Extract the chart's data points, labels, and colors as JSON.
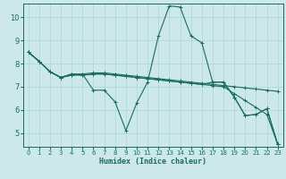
{
  "xlabel": "Humidex (Indice chaleur)",
  "bg_color": "#cce8e8",
  "line_color": "#1a6b60",
  "grid_color": "#aad4d4",
  "xlim": [
    -0.5,
    23.5
  ],
  "ylim": [
    4.4,
    10.6
  ],
  "xticks": [
    0,
    1,
    2,
    3,
    4,
    5,
    6,
    7,
    8,
    9,
    10,
    11,
    12,
    13,
    14,
    15,
    16,
    17,
    18,
    19,
    20,
    21,
    22,
    23
  ],
  "yticks": [
    5,
    6,
    7,
    8,
    9,
    10
  ],
  "series": [
    {
      "x": [
        0,
        1,
        2,
        3,
        4,
        5,
        6,
        7,
        8,
        9,
        10,
        11,
        12,
        13,
        14,
        15,
        16,
        17,
        18,
        19,
        20,
        21,
        22,
        23
      ],
      "y": [
        8.5,
        8.1,
        7.65,
        7.4,
        7.55,
        7.55,
        6.85,
        6.85,
        6.35,
        5.1,
        6.3,
        7.2,
        9.2,
        10.5,
        10.45,
        9.2,
        8.9,
        7.2,
        7.2,
        6.55,
        5.75,
        5.8,
        6.05,
        4.5
      ]
    },
    {
      "x": [
        0,
        1,
        2,
        3,
        4,
        5,
        6,
        7,
        8,
        9,
        10,
        11,
        12,
        13,
        14,
        15,
        16,
        17,
        18,
        19,
        20,
        21,
        22,
        23
      ],
      "y": [
        8.5,
        8.1,
        7.65,
        7.4,
        7.5,
        7.55,
        7.6,
        7.6,
        7.55,
        7.5,
        7.45,
        7.4,
        7.35,
        7.3,
        7.25,
        7.2,
        7.15,
        7.1,
        7.05,
        7.0,
        6.95,
        6.9,
        6.85,
        6.8
      ]
    },
    {
      "x": [
        0,
        1,
        2,
        3,
        4,
        5,
        6,
        7,
        8,
        9,
        10,
        11,
        12,
        13,
        14,
        15,
        16,
        17,
        18,
        19,
        20,
        21,
        22,
        23
      ],
      "y": [
        8.5,
        8.1,
        7.65,
        7.4,
        7.55,
        7.5,
        7.55,
        7.55,
        7.5,
        7.45,
        7.4,
        7.35,
        7.3,
        7.25,
        7.2,
        7.15,
        7.1,
        7.2,
        7.2,
        6.55,
        5.75,
        5.8,
        6.05,
        4.5
      ]
    },
    {
      "x": [
        0,
        1,
        2,
        3,
        4,
        5,
        6,
        7,
        8,
        9,
        10,
        11,
        12,
        13,
        14,
        15,
        16,
        17,
        18,
        19,
        20,
        21,
        22,
        23
      ],
      "y": [
        8.5,
        8.1,
        7.65,
        7.4,
        7.5,
        7.5,
        7.55,
        7.55,
        7.5,
        7.45,
        7.4,
        7.35,
        7.3,
        7.25,
        7.2,
        7.15,
        7.1,
        7.05,
        7.0,
        6.7,
        6.4,
        6.1,
        5.8,
        4.5
      ]
    }
  ]
}
